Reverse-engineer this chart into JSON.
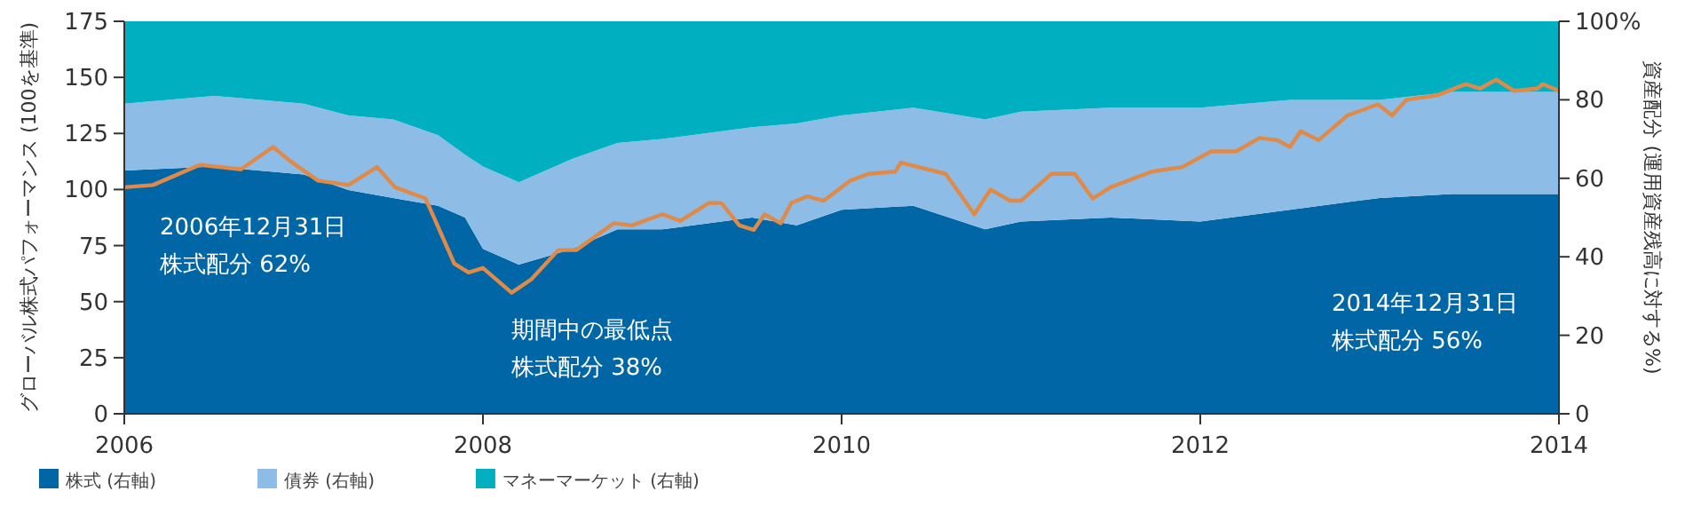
{
  "chart_data": {
    "type": "area",
    "stacked": true,
    "ylabel": "グローバル株式パフォーマンス (100を基準)",
    "y2label": "資産配分 (運用資産残高に対する%)",
    "x": [
      2006,
      2006.5,
      2007,
      2007.25,
      2007.5,
      2007.75,
      2007.9,
      2008,
      2008.2,
      2008.5,
      2008.75,
      2009,
      2009.5,
      2009.75,
      2010,
      2010.4,
      2010.8,
      2011,
      2011.5,
      2012,
      2012.5,
      2013,
      2013.4,
      2014
    ],
    "series": [
      {
        "name": "株式 (右軸)",
        "axis": "y2",
        "color": "#0066a6",
        "values": [
          62,
          63,
          61,
          57,
          55,
          53,
          50,
          42,
          38,
          42,
          47,
          47,
          50,
          48,
          52,
          53,
          47,
          49,
          50,
          49,
          52,
          55,
          56,
          56
        ]
      },
      {
        "name": "債券 (右軸)",
        "axis": "y2",
        "color": "#8dbde6",
        "values": [
          17,
          18,
          18,
          19,
          20,
          18,
          16,
          21,
          21,
          23,
          22,
          23,
          23,
          26,
          24,
          25,
          28,
          28,
          28,
          29,
          28,
          25,
          26,
          26
        ]
      },
      {
        "name": "マネーマーケット (右軸)",
        "axis": "y2",
        "color": "#00b0c0",
        "values": [
          21,
          19,
          21,
          24,
          25,
          29,
          34,
          37,
          41,
          35,
          31,
          30,
          27,
          26,
          24,
          22,
          25,
          23,
          22,
          22,
          20,
          20,
          18,
          18
        ]
      },
      {
        "type": "line",
        "axis": "y",
        "color": "#e08a4a",
        "x": [
          2006,
          2006.16,
          2006.42,
          2006.65,
          2006.83,
          2006.92,
          2007.08,
          2007.25,
          2007.41,
          2007.51,
          2007.68,
          2007.84,
          2007.92,
          2008,
          2008.16,
          2008.27,
          2008.42,
          2008.52,
          2008.73,
          2008.83,
          2009,
          2009.1,
          2009.26,
          2009.33,
          2009.43,
          2009.51,
          2009.57,
          2009.66,
          2009.72,
          2009.81,
          2009.9,
          2010.05,
          2010.15,
          2010.3,
          2010.33,
          2010.58,
          2010.74,
          2010.83,
          2010.94,
          2011,
          2011.17,
          2011.3,
          2011.4,
          2011.5,
          2011.73,
          2011.9,
          2012.06,
          2012.2,
          2012.33,
          2012.43,
          2012.5,
          2012.56,
          2012.66,
          2012.82,
          2012.99,
          2013.07,
          2013.15,
          2013.32,
          2013.48,
          2013.56,
          2013.65,
          2013.75,
          2013.88,
          2013.91,
          2014
        ],
        "values": [
          101,
          102,
          111,
          109,
          119,
          113,
          104,
          102,
          110,
          101,
          96,
          67,
          63,
          65,
          54,
          60,
          73,
          73,
          85,
          84,
          89,
          86,
          94,
          94,
          84,
          82,
          89,
          85,
          94,
          97,
          95,
          104,
          107,
          108,
          112,
          107,
          89,
          100,
          95,
          95,
          107,
          107,
          96,
          101,
          108,
          110,
          117,
          117,
          123,
          122,
          119,
          126,
          122,
          133,
          138,
          133,
          140,
          142,
          147,
          145,
          149,
          144,
          145,
          147,
          144
        ]
      }
    ],
    "xlim": [
      2006,
      2014
    ],
    "xticks": [
      2006,
      2008,
      2010,
      2012,
      2014
    ],
    "ylim": [
      0,
      175
    ],
    "yticks": [
      0,
      25,
      50,
      75,
      100,
      125,
      150,
      175
    ],
    "y2lim": [
      0,
      100
    ],
    "y2ticks": [
      0,
      20,
      40,
      60,
      80,
      {
        "value": 100,
        "label": "100%"
      }
    ],
    "annotations": [
      "2006年12月31日",
      "株式配分 62%",
      "期間中の最低点",
      "株式配分 38%",
      "2014年12月31日",
      "株式配分 56%"
    ],
    "legend": "bottom",
    "grid": false
  }
}
